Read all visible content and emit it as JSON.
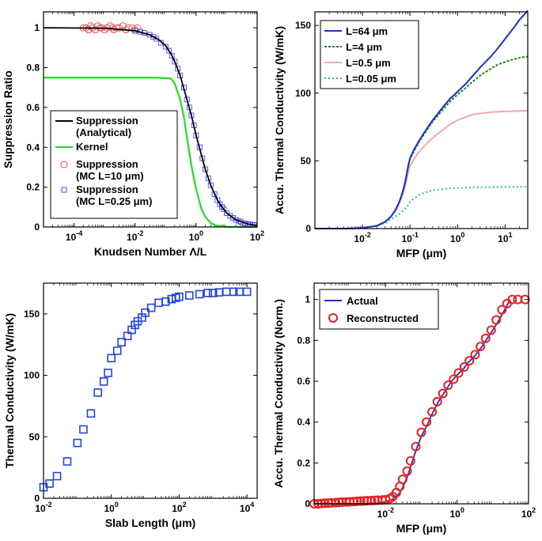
{
  "chart_data": [
    {
      "id": "a",
      "type": "line",
      "title": "",
      "xlabel_parts": [
        "Knudsen Number ",
        "Λ",
        "/L"
      ],
      "ylabel": "Suppression Ratio",
      "xscale": "log",
      "xlim": [
        1e-05,
        100
      ],
      "ylim": [
        0,
        1.08
      ],
      "xticks": [
        {
          "v": 0.0001,
          "b": "10",
          "e": "-4"
        },
        {
          "v": 0.01,
          "b": "10",
          "e": "-2"
        },
        {
          "v": 1,
          "b": "10",
          "e": "0"
        },
        {
          "v": 100,
          "b": "10",
          "e": "2"
        }
      ],
      "yticks": [
        {
          "v": 0,
          "t": "0"
        },
        {
          "v": 0.2,
          "t": "0.2"
        },
        {
          "v": 0.4,
          "t": "0.4"
        },
        {
          "v": 0.6,
          "t": "0.6"
        },
        {
          "v": 0.8,
          "t": "0.8"
        },
        {
          "v": 1,
          "t": "1"
        }
      ],
      "legend_position": "bottom-left",
      "series": [
        {
          "name": "Suppression (Analytical)",
          "legend_lines": [
            "Suppression",
            "(Analytical)"
          ],
          "style": "line",
          "color": "#000000",
          "x": [
            1e-05,
            0.001,
            0.01,
            0.03,
            0.06,
            0.1,
            0.15,
            0.2,
            0.3,
            0.5,
            0.7,
            1,
            1.5,
            2,
            3,
            5,
            7,
            10,
            20,
            50,
            100
          ],
          "y": [
            1.0,
            0.998,
            0.985,
            0.965,
            0.94,
            0.91,
            0.87,
            0.83,
            0.76,
            0.64,
            0.56,
            0.46,
            0.36,
            0.29,
            0.21,
            0.135,
            0.1,
            0.07,
            0.036,
            0.015,
            0.008
          ]
        },
        {
          "name": "Kernel",
          "legend_lines": [
            "Kernel"
          ],
          "style": "line",
          "color": "#22dd22",
          "x": [
            1e-05,
            0.05,
            0.15,
            0.2,
            0.3,
            0.4,
            0.5,
            0.7,
            1,
            1.5,
            2,
            3,
            5,
            10,
            100
          ],
          "y": [
            0.75,
            0.75,
            0.745,
            0.72,
            0.64,
            0.55,
            0.45,
            0.31,
            0.19,
            0.09,
            0.05,
            0.02,
            0.005,
            0.001,
            0.0
          ]
        },
        {
          "name": "Suppression (MC L=10 μm)",
          "legend_lines": [
            "Suppression",
            "(MC L=10 μm)"
          ],
          "style": "circle",
          "color": "#ff4444",
          "x": [
            0.0002,
            0.00025,
            0.0003,
            0.00035,
            0.0004,
            0.0005,
            0.0006,
            0.0007,
            0.0008,
            0.001,
            0.0012,
            0.0015,
            0.0018,
            0.002,
            0.0025,
            0.003,
            0.004,
            0.005,
            0.006,
            0.008,
            0.01,
            0.012
          ],
          "y": [
            1.0,
            1.0,
            0.99,
            1.01,
            1.0,
            0.99,
            1.01,
            1.0,
            1.0,
            0.99,
            1.0,
            1.01,
            1.0,
            0.99,
            1.0,
            1.0,
            1.01,
            0.99,
            1.0,
            1.0,
            0.99,
            1.0
          ]
        },
        {
          "name": "Suppression (MC L=0.25 μm)",
          "legend_lines": [
            "Suppression",
            "(MC L=0.25 μm)"
          ],
          "style": "square",
          "color": "#4444ff",
          "x": [
            0.01,
            0.015,
            0.02,
            0.03,
            0.04,
            0.05,
            0.07,
            0.1,
            0.13,
            0.16,
            0.2,
            0.25,
            0.3,
            0.4,
            0.5,
            0.6,
            0.7,
            0.85,
            1,
            1.3,
            1.6,
            2,
            2.5,
            3,
            4,
            5,
            6,
            7,
            8,
            10,
            13,
            16,
            20,
            25,
            30,
            40,
            50,
            60,
            70,
            80
          ],
          "y": [
            0.985,
            0.98,
            0.975,
            0.965,
            0.955,
            0.945,
            0.925,
            0.905,
            0.885,
            0.86,
            0.83,
            0.795,
            0.76,
            0.7,
            0.64,
            0.6,
            0.56,
            0.51,
            0.46,
            0.4,
            0.345,
            0.29,
            0.245,
            0.21,
            0.165,
            0.135,
            0.115,
            0.1,
            0.09,
            0.07,
            0.056,
            0.046,
            0.036,
            0.029,
            0.024,
            0.018,
            0.015,
            0.013,
            0.011,
            0.01
          ]
        }
      ]
    },
    {
      "id": "b",
      "type": "line",
      "title": "",
      "xlabel_parts": [
        "MFP (",
        "μ",
        "m)"
      ],
      "ylabel": "Accu. Thermal Conductivity (W/mK)",
      "xscale": "log",
      "xlim": [
        0.001,
        30
      ],
      "ylim": [
        0,
        160
      ],
      "xticks": [
        {
          "v": 0.01,
          "b": "10",
          "e": "-2"
        },
        {
          "v": 0.1,
          "b": "10",
          "e": "-1"
        },
        {
          "v": 1,
          "b": "10",
          "e": "0"
        },
        {
          "v": 10,
          "b": "10",
          "e": "1"
        }
      ],
      "yticks": [
        {
          "v": 0,
          "t": "0"
        },
        {
          "v": 50,
          "t": "50"
        },
        {
          "v": 100,
          "t": "100"
        },
        {
          "v": 150,
          "t": "150"
        }
      ],
      "legend_position": "top-left",
      "series": [
        {
          "name": "L=64 μm",
          "style": "line",
          "dash": "",
          "color": "#1a2fcc",
          "x": [
            0.001,
            0.005,
            0.01,
            0.02,
            0.03,
            0.04,
            0.05,
            0.06,
            0.07,
            0.08,
            0.09,
            0.1,
            0.12,
            0.15,
            0.2,
            0.3,
            0.5,
            0.7,
            1,
            1.5,
            2,
            3,
            5,
            7,
            10,
            15,
            20,
            30
          ],
          "y": [
            0,
            0,
            0.5,
            2,
            5,
            9,
            14,
            20,
            27,
            35,
            45,
            52,
            58,
            64,
            71,
            80,
            90,
            96,
            101,
            107,
            112,
            119,
            127,
            133,
            140,
            148,
            154,
            161
          ]
        },
        {
          "name": "L=4 μm",
          "style": "line",
          "dash": "3,2",
          "color": "#118811",
          "x": [
            0.001,
            0.005,
            0.01,
            0.02,
            0.03,
            0.04,
            0.05,
            0.06,
            0.07,
            0.08,
            0.09,
            0.1,
            0.12,
            0.15,
            0.2,
            0.3,
            0.5,
            0.7,
            1,
            1.5,
            2,
            3,
            5,
            7,
            10,
            15,
            20,
            30
          ],
          "y": [
            0,
            0,
            0.5,
            2,
            5,
            9,
            14,
            20,
            27,
            35,
            44,
            51,
            57,
            63,
            70,
            79,
            88,
            94,
            99,
            104,
            108,
            113,
            118,
            121,
            123,
            125,
            126,
            127
          ]
        },
        {
          "name": "L=0.5 μm",
          "style": "line",
          "dash": "",
          "color": "#f4a8a8",
          "x": [
            0.001,
            0.005,
            0.01,
            0.02,
            0.03,
            0.04,
            0.05,
            0.06,
            0.07,
            0.08,
            0.09,
            0.1,
            0.12,
            0.15,
            0.2,
            0.3,
            0.5,
            0.7,
            1,
            1.5,
            2,
            3,
            5,
            10,
            30
          ],
          "y": [
            0,
            0,
            0.5,
            2,
            5,
            9,
            13,
            19,
            25,
            32,
            40,
            46,
            51,
            56,
            61,
            67,
            73,
            77,
            80,
            82.5,
            84,
            85,
            86,
            86.5,
            87
          ]
        },
        {
          "name": "L=0.05 μm",
          "style": "line",
          "dash": "2,3",
          "color": "#22bbcc",
          "x": [
            0.001,
            0.005,
            0.01,
            0.02,
            0.03,
            0.04,
            0.05,
            0.06,
            0.07,
            0.08,
            0.09,
            0.1,
            0.12,
            0.15,
            0.2,
            0.3,
            0.5,
            1,
            2,
            5,
            10,
            30
          ],
          "y": [
            0,
            0,
            0.5,
            2,
            4,
            7,
            9,
            11,
            13,
            15,
            17,
            19.5,
            22,
            24.5,
            26.5,
            28.2,
            29.2,
            30,
            30.4,
            30.6,
            30.7,
            30.8
          ]
        }
      ]
    },
    {
      "id": "c",
      "type": "scatter",
      "title": "",
      "xlabel_parts": [
        "Slab Length (",
        "μ",
        "m)"
      ],
      "ylabel": "Thermal Conductivity (W/mK)",
      "xscale": "log",
      "xlim": [
        0.01,
        20000
      ],
      "ylim": [
        0,
        175
      ],
      "xticks": [
        {
          "v": 0.01,
          "b": "10",
          "e": "-2"
        },
        {
          "v": 1,
          "b": "10",
          "e": "0"
        },
        {
          "v": 100,
          "b": "10",
          "e": "2"
        },
        {
          "v": 10000,
          "b": "10",
          "e": "4"
        }
      ],
      "yticks": [
        {
          "v": 0,
          "t": "0"
        },
        {
          "v": 50,
          "t": "50"
        },
        {
          "v": 100,
          "t": "100"
        },
        {
          "v": 150,
          "t": "150"
        }
      ],
      "series": [
        {
          "name": "Slab",
          "style": "square",
          "color": "#2244dd",
          "x": [
            0.01,
            0.015,
            0.025,
            0.05,
            0.1,
            0.15,
            0.25,
            0.4,
            0.6,
            0.8,
            1,
            1.5,
            2,
            3,
            4,
            5,
            6,
            8,
            10,
            15,
            25,
            40,
            60,
            80,
            100,
            200,
            400,
            700,
            1000,
            1500,
            2500,
            4000,
            6000,
            10000
          ],
          "y": [
            9,
            12,
            18,
            30,
            45,
            56,
            69,
            86,
            95,
            102,
            114,
            120,
            127,
            132,
            137,
            141,
            144,
            147,
            151,
            155,
            159,
            160,
            162,
            163,
            164,
            165,
            166,
            167,
            167,
            167.5,
            168,
            168,
            168,
            168
          ]
        }
      ]
    },
    {
      "id": "d",
      "type": "line",
      "title": "",
      "xlabel_parts": [
        "MFP (",
        "μ",
        "m)"
      ],
      "ylabel": "Accu. Thermal Conductivity (Norm.)",
      "xscale": "log",
      "xlim": [
        0.0001,
        100
      ],
      "ylim": [
        0,
        1.08
      ],
      "xticks": [
        {
          "v": 0.01,
          "b": "10",
          "e": "-2"
        },
        {
          "v": 1,
          "b": "10",
          "e": "0"
        },
        {
          "v": 100,
          "b": "10",
          "e": "2"
        }
      ],
      "yticks": [
        {
          "v": 0,
          "t": "0"
        },
        {
          "v": 0.2,
          "t": "0.2"
        },
        {
          "v": 0.4,
          "t": "0.4"
        },
        {
          "v": 0.6,
          "t": "0.6"
        },
        {
          "v": 0.8,
          "t": "0.8"
        },
        {
          "v": 1,
          "t": "1"
        }
      ],
      "legend_position": "top-left",
      "series": [
        {
          "name": "Actual",
          "style": "line",
          "color": "#1a2fcc",
          "x": [
            0.0001,
            0.001,
            0.005,
            0.01,
            0.015,
            0.02,
            0.025,
            0.03,
            0.04,
            0.05,
            0.07,
            0.1,
            0.15,
            0.2,
            0.3,
            0.5,
            0.7,
            1,
            1.5,
            2,
            3,
            5,
            7,
            10,
            15,
            20,
            25,
            30
          ],
          "y": [
            0,
            0,
            0.002,
            0.01,
            0.02,
            0.035,
            0.055,
            0.08,
            0.13,
            0.18,
            0.26,
            0.33,
            0.39,
            0.44,
            0.5,
            0.56,
            0.6,
            0.63,
            0.66,
            0.69,
            0.72,
            0.77,
            0.81,
            0.85,
            0.9,
            0.94,
            0.97,
            1.0
          ]
        },
        {
          "name": "Reconstructed",
          "style": "circle",
          "color": "#e82020",
          "x": [
            0.0001,
            0.00013,
            0.00016,
            0.0002,
            0.00025,
            0.0003,
            0.0004,
            0.0005,
            0.0006,
            0.0008,
            0.001,
            0.0013,
            0.0016,
            0.002,
            0.0025,
            0.003,
            0.004,
            0.005,
            0.006,
            0.008,
            0.01,
            0.013,
            0.016,
            0.02,
            0.025,
            0.03,
            0.04,
            0.05,
            0.07,
            0.1,
            0.14,
            0.2,
            0.28,
            0.4,
            0.56,
            0.8,
            1.1,
            1.6,
            2.2,
            3.2,
            4.5,
            6.3,
            9,
            12.5,
            18,
            25,
            35,
            50,
            80
          ],
          "y": [
            0,
            0,
            0.002,
            0.003,
            0.004,
            0.005,
            0.006,
            0.007,
            0.008,
            0.009,
            0.01,
            0.011,
            0.012,
            0.013,
            0.014,
            0.015,
            0.016,
            0.017,
            0.018,
            0.019,
            0.02,
            0.025,
            0.035,
            0.055,
            0.085,
            0.12,
            0.16,
            0.21,
            0.28,
            0.35,
            0.4,
            0.45,
            0.5,
            0.54,
            0.58,
            0.61,
            0.64,
            0.67,
            0.7,
            0.73,
            0.77,
            0.81,
            0.85,
            0.9,
            0.95,
            0.98,
            1.0,
            1.0,
            1.0
          ]
        }
      ]
    }
  ]
}
